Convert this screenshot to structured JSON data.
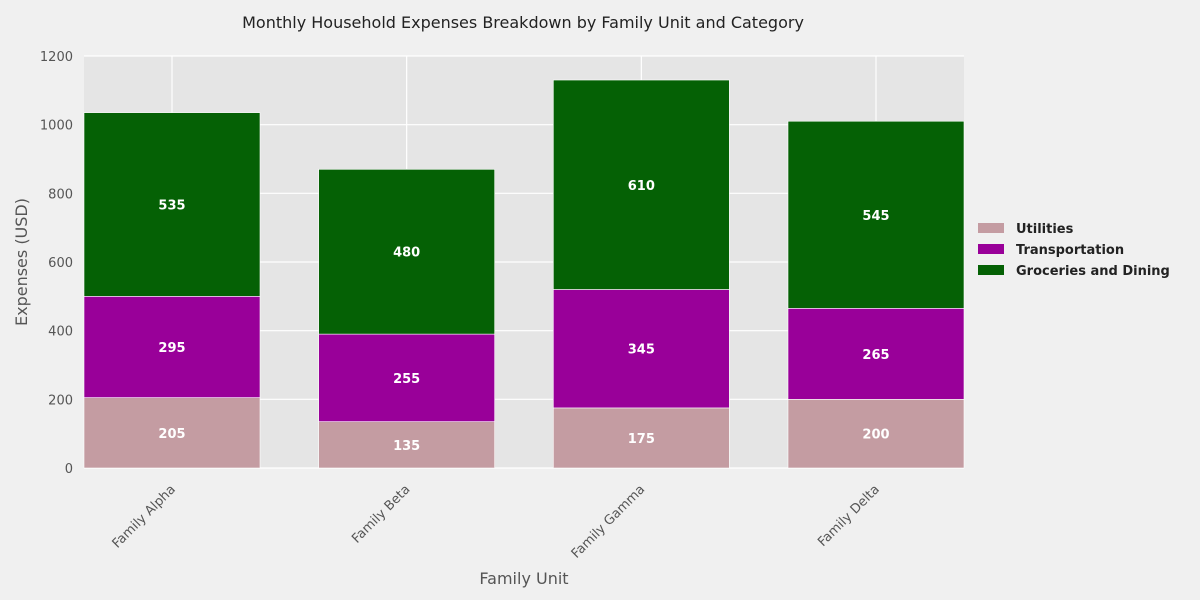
{
  "chart_data": {
    "type": "bar",
    "stacked": true,
    "title": "Monthly Household Expenses Breakdown by Family Unit and Category",
    "xlabel": "Family Unit",
    "ylabel": "Expenses (USD)",
    "ylim": [
      0,
      1200
    ],
    "yticks": [
      0,
      200,
      400,
      600,
      800,
      1000,
      1200
    ],
    "categories": [
      "Family Alpha",
      "Family Beta",
      "Family Gamma",
      "Family Delta"
    ],
    "series": [
      {
        "name": "Utilities",
        "values": [
          205,
          135,
          175,
          200
        ],
        "color": "#c49ca2"
      },
      {
        "name": "Transportation",
        "values": [
          295,
          255,
          345,
          265
        ],
        "color": "#990099"
      },
      {
        "name": "Groceries and Dining",
        "values": [
          535,
          480,
          610,
          545
        ],
        "color": "#056105"
      }
    ],
    "grid": true,
    "legend_position": "right",
    "background": "#e5e5e5"
  }
}
